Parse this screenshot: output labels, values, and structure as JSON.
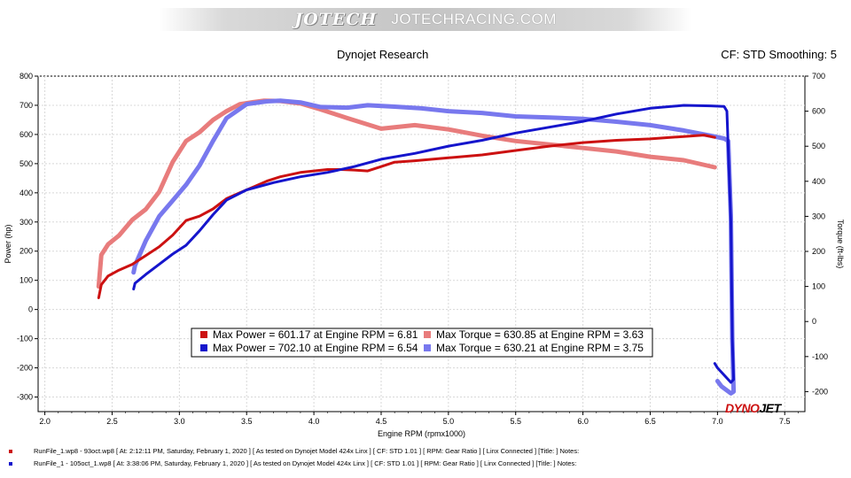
{
  "banner": {
    "logo": "JOTECH",
    "url": "JOTECHRACING.COM"
  },
  "header": {
    "title": "Dynojet Research",
    "cf": "CF: STD Smoothing: 5"
  },
  "brand": {
    "part1": "DYNO",
    "part2": "JET"
  },
  "colors": {
    "dark_red": "#cc1111",
    "light_red": "#e87c7c",
    "dark_blue": "#1515cc",
    "light_blue": "#7878ee"
  },
  "chart_data": {
    "type": "line",
    "xlabel": "Engine RPM (rpmx1000)",
    "ylabel_left": "Power (hp)",
    "ylabel_right": "Torque (ft-lbs)",
    "xlim": [
      1.95,
      7.65
    ],
    "ylim_left": [
      -350,
      800
    ],
    "ylim_right": [
      -257,
      700
    ],
    "x_ticks": [
      2.0,
      2.5,
      3.0,
      3.5,
      4.0,
      4.5,
      5.0,
      5.5,
      6.0,
      6.5,
      7.0,
      7.5
    ],
    "y_ticks_left": [
      800,
      700,
      600,
      500,
      400,
      300,
      200,
      100,
      0,
      -100,
      -200,
      -300
    ],
    "y_ticks_right": [
      700,
      600,
      500,
      400,
      300,
      200,
      100,
      0,
      -100,
      -200
    ],
    "grid": true,
    "series": [
      {
        "name": "RunFile_1.wp8 - 93oct.wp8",
        "kind": "power",
        "axis": "left",
        "color": "#cc1111",
        "x": [
          2.4,
          2.42,
          2.47,
          2.55,
          2.65,
          2.75,
          2.85,
          2.95,
          3.05,
          3.15,
          3.25,
          3.35,
          3.45,
          3.55,
          3.65,
          3.75,
          3.9,
          4.0,
          4.1,
          4.2,
          4.3,
          4.4,
          4.5,
          4.6,
          4.75,
          5.0,
          5.25,
          5.5,
          5.75,
          6.0,
          6.25,
          6.5,
          6.75,
          6.9,
          6.98
        ],
        "y": [
          40,
          85,
          115,
          135,
          155,
          185,
          215,
          255,
          305,
          320,
          345,
          380,
          400,
          420,
          440,
          455,
          470,
          475,
          480,
          480,
          478,
          475,
          490,
          505,
          510,
          520,
          530,
          545,
          560,
          572,
          580,
          585,
          593,
          598,
          590
        ]
      },
      {
        "name": "RunFile_1.wp8 - 93oct.wp8",
        "kind": "torque",
        "axis": "right",
        "color": "#e87c7c",
        "x": [
          2.4,
          2.42,
          2.47,
          2.55,
          2.65,
          2.75,
          2.85,
          2.95,
          3.05,
          3.15,
          3.25,
          3.35,
          3.45,
          3.55,
          3.63,
          3.75,
          3.9,
          4.05,
          4.25,
          4.5,
          4.75,
          5.0,
          5.25,
          5.5,
          5.75,
          6.0,
          6.25,
          6.5,
          6.75,
          6.98
        ],
        "y": [
          100,
          190,
          220,
          245,
          290,
          320,
          370,
          455,
          515,
          540,
          575,
          600,
          620,
          626,
          630,
          629,
          622,
          605,
          580,
          550,
          560,
          548,
          530,
          515,
          505,
          495,
          485,
          470,
          460,
          440
        ]
      },
      {
        "name": "RunFile_1 - 105oct_1.wp8",
        "kind": "power",
        "axis": "left",
        "color": "#1515cc",
        "x": [
          2.66,
          2.67,
          2.75,
          2.85,
          2.95,
          3.05,
          3.15,
          3.25,
          3.35,
          3.5,
          3.7,
          3.9,
          4.1,
          4.3,
          4.5,
          4.75,
          5.0,
          5.25,
          5.5,
          5.75,
          6.0,
          6.25,
          6.5,
          6.75,
          6.95,
          7.05,
          7.07,
          7.1,
          7.11,
          7.12,
          7.1,
          7.03,
          7.0,
          6.98
        ],
        "y": [
          70,
          90,
          120,
          155,
          190,
          220,
          270,
          325,
          375,
          410,
          435,
          455,
          470,
          490,
          515,
          535,
          560,
          580,
          605,
          625,
          645,
          670,
          690,
          700,
          698,
          696,
          680,
          300,
          -100,
          -240,
          -250,
          -215,
          -200,
          -185
        ]
      },
      {
        "name": "RunFile_1 - 105oct_1.wp8",
        "kind": "torque",
        "axis": "right",
        "color": "#7878ee",
        "x": [
          2.66,
          2.67,
          2.75,
          2.85,
          2.95,
          3.05,
          3.15,
          3.25,
          3.35,
          3.5,
          3.65,
          3.75,
          3.9,
          4.05,
          4.25,
          4.4,
          4.6,
          4.8,
          5.0,
          5.25,
          5.5,
          5.75,
          6.0,
          6.25,
          6.5,
          6.75,
          6.95,
          7.05,
          7.08,
          7.1,
          7.11,
          7.12,
          7.1,
          7.03,
          7.0
        ],
        "y": [
          140,
          160,
          230,
          300,
          345,
          390,
          445,
          515,
          580,
          620,
          628,
          630,
          625,
          612,
          610,
          617,
          613,
          608,
          600,
          595,
          585,
          582,
          578,
          570,
          560,
          545,
          530,
          522,
          515,
          300,
          -50,
          -200,
          -205,
          -185,
          -170
        ]
      }
    ],
    "legend": [
      {
        "label": "Max Power = 601.17 at Engine RPM = 6.81",
        "color": "#cc1111"
      },
      {
        "label": "Max Torque = 630.85 at Engine RPM = 3.63",
        "color": "#e87c7c"
      },
      {
        "label": "Max Power = 702.10 at Engine RPM = 6.54",
        "color": "#1515cc"
      },
      {
        "label": "Max Torque = 630.21 at Engine RPM = 3.75",
        "color": "#7878ee"
      }
    ]
  },
  "footer": [
    {
      "color": "#cc1111",
      "text": "RunFile_1.wp8 - 93oct.wp8 [ At: 2:12:11 PM, Saturday, February 1, 2020 ] [ As tested on Dynojet Model 424x Linx ] [ CF: STD 1.01 ] [ RPM: Gear Ratio ] [ Linx Connected ] [Title: ]  Notes:"
    },
    {
      "color": "#1515cc",
      "text": "RunFile_1 - 105oct_1.wp8 [ At: 3:38:06 PM, Saturday, February 1, 2020 ] [ As tested on Dynojet Model 424x Linx ] [ CF: STD 1.01 ] [ RPM: Gear Ratio ] [ Linx Connected ] [Title: ]  Notes:"
    }
  ]
}
